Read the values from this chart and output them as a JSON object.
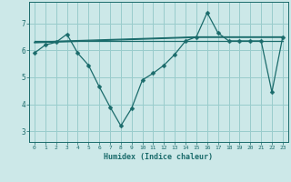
{
  "xlabel": "Humidex (Indice chaleur)",
  "bg_color": "#cce8e8",
  "grid_color": "#99cccc",
  "line_color": "#1a6b6b",
  "x_min": -0.5,
  "x_max": 23.5,
  "y_min": 2.6,
  "y_max": 7.8,
  "yticks": [
    3,
    4,
    5,
    6,
    7
  ],
  "xticks": [
    0,
    1,
    2,
    3,
    4,
    5,
    6,
    7,
    8,
    9,
    10,
    11,
    12,
    13,
    14,
    15,
    16,
    17,
    18,
    19,
    20,
    21,
    22,
    23
  ],
  "series1_x": [
    0,
    1,
    2,
    3,
    4,
    5,
    6,
    7,
    8,
    9,
    10,
    11,
    12,
    13,
    14,
    15,
    16,
    17,
    18,
    19,
    20,
    21,
    22,
    23
  ],
  "series1_y": [
    5.9,
    6.2,
    6.3,
    6.6,
    5.9,
    5.45,
    4.65,
    3.9,
    3.2,
    3.85,
    4.9,
    5.15,
    5.45,
    5.85,
    6.35,
    6.5,
    7.4,
    6.65,
    6.35,
    6.35,
    6.35,
    6.35,
    4.45,
    6.5
  ],
  "series2_x": [
    0,
    3,
    15,
    23
  ],
  "series2_y": [
    6.3,
    6.35,
    6.5,
    6.5
  ],
  "series3_x": [
    0,
    3,
    15,
    23
  ],
  "series3_y": [
    6.28,
    6.32,
    6.48,
    6.48
  ],
  "series4_x": [
    0,
    23
  ],
  "series4_y": [
    6.35,
    6.35
  ]
}
